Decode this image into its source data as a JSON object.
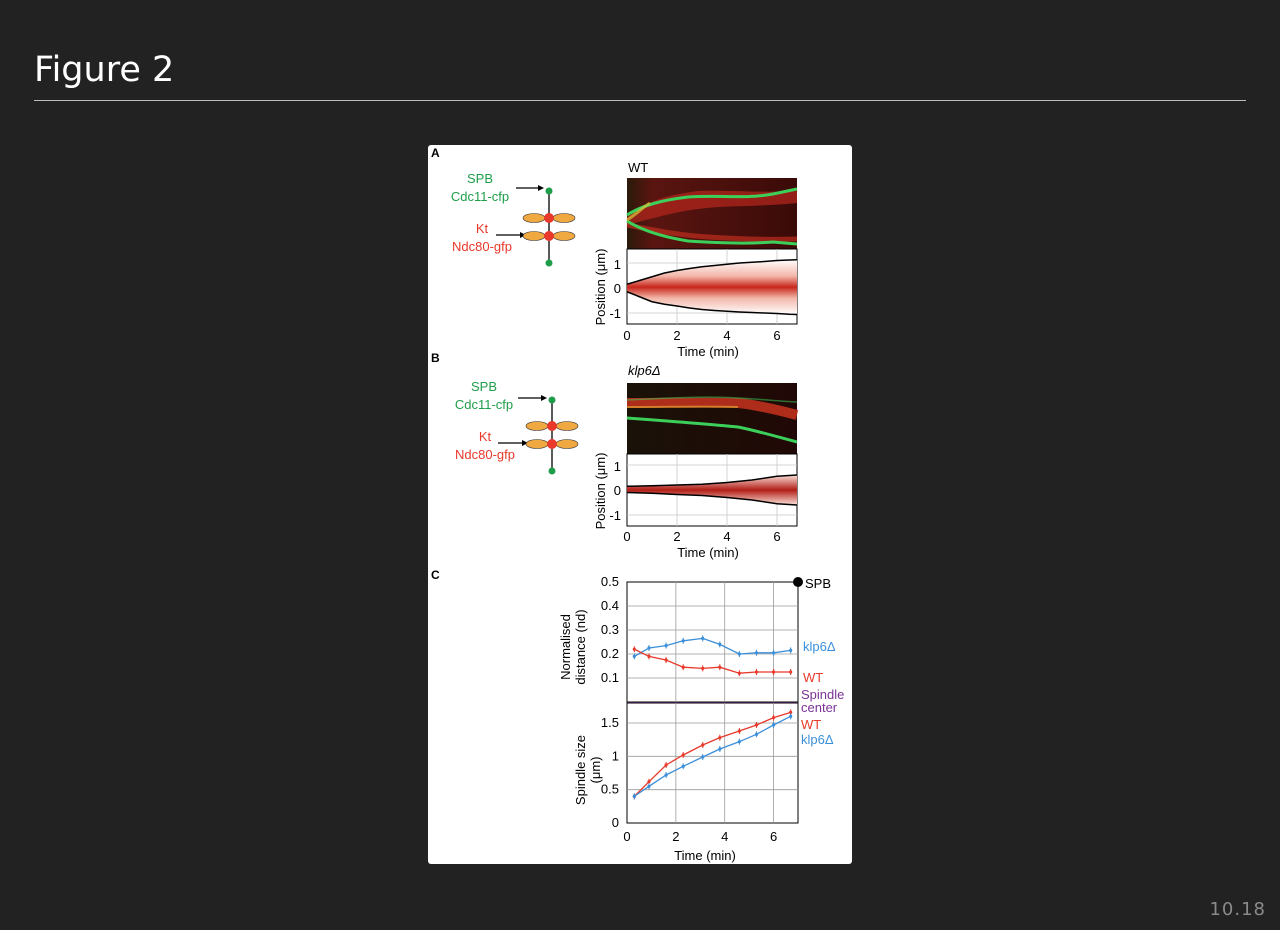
{
  "slide": {
    "title": "Figure 2",
    "number": "10.18"
  },
  "figure": {
    "panel_a": {
      "label": "A",
      "condition": "WT",
      "schematic": {
        "spb_label": "SPB",
        "spb_marker": "Cdc11-cfp",
        "kt_label": "Kt",
        "kt_marker": "Ndc80-gfp"
      },
      "kymograph": {
        "ylabel": "Position (μm)",
        "xlabel": "Time (min)",
        "yticks": [
          "1",
          "0",
          "-1"
        ],
        "xticks": [
          "0",
          "2",
          "4",
          "6"
        ],
        "x": [
          0,
          0.5,
          1,
          1.5,
          2,
          2.5,
          3,
          3.5,
          4,
          4.5,
          5,
          5.5,
          6,
          6.5,
          6.8
        ],
        "spb_upper": [
          0.15,
          0.3,
          0.45,
          0.6,
          0.7,
          0.78,
          0.85,
          0.9,
          0.95,
          1.0,
          1.03,
          1.06,
          1.1,
          1.12,
          1.13
        ],
        "spb_lower": [
          -0.15,
          -0.35,
          -0.55,
          -0.65,
          -0.72,
          -0.8,
          -0.86,
          -0.9,
          -0.93,
          -0.96,
          -0.98,
          -1.0,
          -1.02,
          -1.05,
          -1.06
        ]
      }
    },
    "panel_b": {
      "label": "B",
      "condition": "klp6Δ",
      "schematic": {
        "spb_label": "SPB",
        "spb_marker": "Cdc11-cfp",
        "kt_label": "Kt",
        "kt_marker": "Ndc80-gfp"
      },
      "kymograph": {
        "ylabel": "Position (μm)",
        "xlabel": "Time (min)",
        "yticks": [
          "1",
          "0",
          "-1"
        ],
        "xticks": [
          "0",
          "2",
          "4",
          "6"
        ],
        "x": [
          0,
          1,
          2,
          3,
          4,
          5,
          6,
          6.8
        ],
        "spb_upper": [
          0.15,
          0.17,
          0.2,
          0.23,
          0.3,
          0.4,
          0.55,
          0.6
        ],
        "spb_lower": [
          -0.1,
          -0.13,
          -0.18,
          -0.22,
          -0.3,
          -0.4,
          -0.55,
          -0.6
        ]
      }
    },
    "panel_c": {
      "label": "C",
      "legend": {
        "spb": "SPB",
        "spindle_center_line1": "Spindle",
        "spindle_center_line2": "center"
      },
      "colors": {
        "wt": "#e8392b",
        "klp6": "#3b8fd9",
        "center": "#7b3294"
      }
    }
  },
  "chart_data": [
    {
      "type": "line",
      "ylabel": "Normalised distance (nd)",
      "xlabel": "",
      "ylim": [
        0,
        0.5
      ],
      "xlim": [
        0,
        7
      ],
      "yticks": [
        "0.5",
        "0.4",
        "0.3",
        "0.2",
        "0.1"
      ],
      "x": [
        0.3,
        0.9,
        1.6,
        2.3,
        3.1,
        3.8,
        4.6,
        5.3,
        6.0,
        6.7
      ],
      "series": [
        {
          "name": "klp6Δ",
          "values": [
            0.19,
            0.225,
            0.235,
            0.255,
            0.265,
            0.24,
            0.2,
            0.205,
            0.205,
            0.215
          ]
        },
        {
          "name": "WT",
          "values": [
            0.22,
            0.19,
            0.175,
            0.145,
            0.14,
            0.145,
            0.12,
            0.125,
            0.125,
            0.125
          ]
        }
      ]
    },
    {
      "type": "line",
      "ylabel": "Spindle size (μm)",
      "xlabel": "Time (min)",
      "ylim": [
        0,
        1.8
      ],
      "xlim": [
        0,
        7
      ],
      "yticks": [
        "1.5",
        "1",
        "0.5",
        "0"
      ],
      "xticks": [
        "0",
        "2",
        "4",
        "6"
      ],
      "x": [
        0.3,
        0.9,
        1.6,
        2.3,
        3.1,
        3.8,
        4.6,
        5.3,
        6.0,
        6.7
      ],
      "series": [
        {
          "name": "WT",
          "values": [
            0.4,
            0.62,
            0.87,
            1.02,
            1.17,
            1.28,
            1.38,
            1.47,
            1.58,
            1.66
          ]
        },
        {
          "name": "klp6Δ",
          "values": [
            0.4,
            0.55,
            0.72,
            0.85,
            0.99,
            1.11,
            1.22,
            1.33,
            1.47,
            1.6
          ]
        }
      ]
    }
  ]
}
